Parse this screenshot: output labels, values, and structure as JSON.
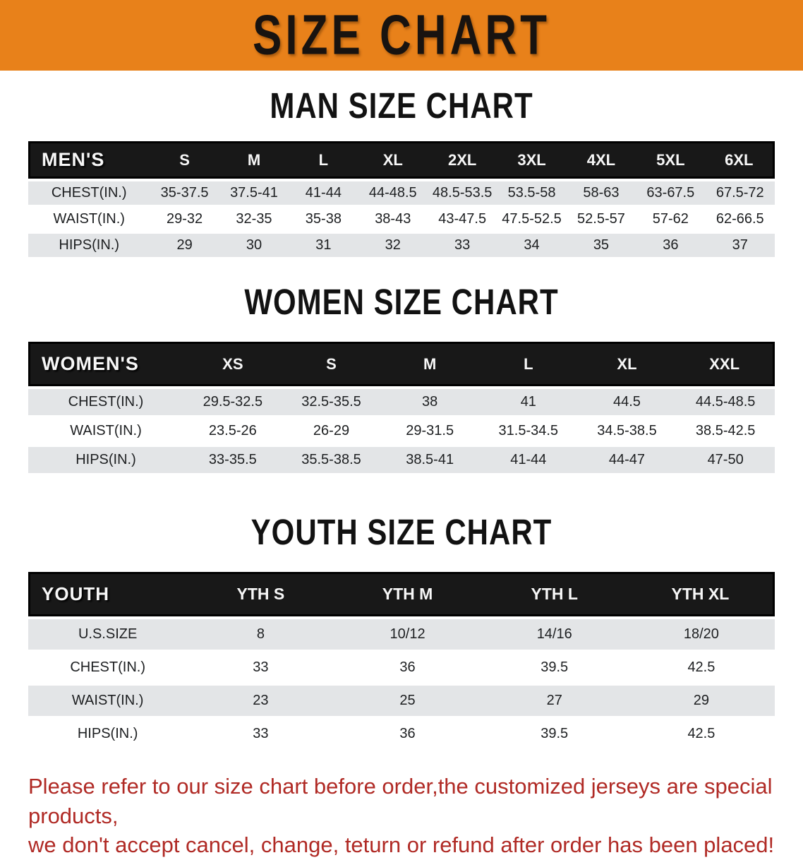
{
  "banner": {
    "title": "SIZE CHART",
    "bg_color": "#e8811a",
    "text_color": "#181310"
  },
  "colors": {
    "table_band": "#181818",
    "row_gray": "#e3e5e7",
    "row_white": "#ffffff",
    "disclaimer_red": "#b02a25"
  },
  "sections": [
    {
      "heading": "MAN SIZE CHART",
      "table": {
        "corner": "MEN'S",
        "sizes": [
          "S",
          "M",
          "L",
          "XL",
          "2XL",
          "3XL",
          "4XL",
          "5XL",
          "6XL"
        ],
        "rows": [
          {
            "label": "CHEST(IN.)",
            "values": [
              "35-37.5",
              "37.5-41",
              "41-44",
              "44-48.5",
              "48.5-53.5",
              "53.5-58",
              "58-63",
              "63-67.5",
              "67.5-72"
            ]
          },
          {
            "label": "WAIST(IN.)",
            "values": [
              "29-32",
              "32-35",
              "35-38",
              "38-43",
              "43-47.5",
              "47.5-52.5",
              "52.5-57",
              "57-62",
              "62-66.5"
            ]
          },
          {
            "label": "HIPS(IN.)",
            "values": [
              "29",
              "30",
              "31",
              "32",
              "33",
              "34",
              "35",
              "36",
              "37"
            ]
          }
        ]
      }
    },
    {
      "heading": "WOMEN SIZE CHART",
      "table": {
        "corner": "WOMEN'S",
        "sizes": [
          "XS",
          "S",
          "M",
          "L",
          "XL",
          "XXL"
        ],
        "rows": [
          {
            "label": "CHEST(IN.)",
            "values": [
              "29.5-32.5",
              "32.5-35.5",
              "38",
              "41",
              "44.5",
              "44.5-48.5"
            ]
          },
          {
            "label": "WAIST(IN.)",
            "values": [
              "23.5-26",
              "26-29",
              "29-31.5",
              "31.5-34.5",
              "34.5-38.5",
              "38.5-42.5"
            ]
          },
          {
            "label": "HIPS(IN.)",
            "values": [
              "33-35.5",
              "35.5-38.5",
              "38.5-41",
              "41-44",
              "44-47",
              "47-50"
            ]
          }
        ]
      }
    },
    {
      "heading": "YOUTH SIZE CHART",
      "table": {
        "corner": "YOUTH",
        "sizes": [
          "YTH S",
          "YTH M",
          "YTH L",
          "YTH XL"
        ],
        "rows": [
          {
            "label": "U.S.SIZE",
            "values": [
              "8",
              "10/12",
              "14/16",
              "18/20"
            ]
          },
          {
            "label": "CHEST(IN.)",
            "values": [
              "33",
              "36",
              "39.5",
              "42.5"
            ]
          },
          {
            "label": "WAIST(IN.)",
            "values": [
              "23",
              "25",
              "27",
              "29"
            ]
          },
          {
            "label": "HIPS(IN.)",
            "values": [
              "33",
              "36",
              "39.5",
              "42.5"
            ]
          }
        ]
      }
    }
  ],
  "disclaimer": {
    "line1": "Please refer to our size chart before order,the customized jerseys are special products,",
    "line2": "we don't accept cancel, change, teturn or refund after order has been placed!"
  }
}
